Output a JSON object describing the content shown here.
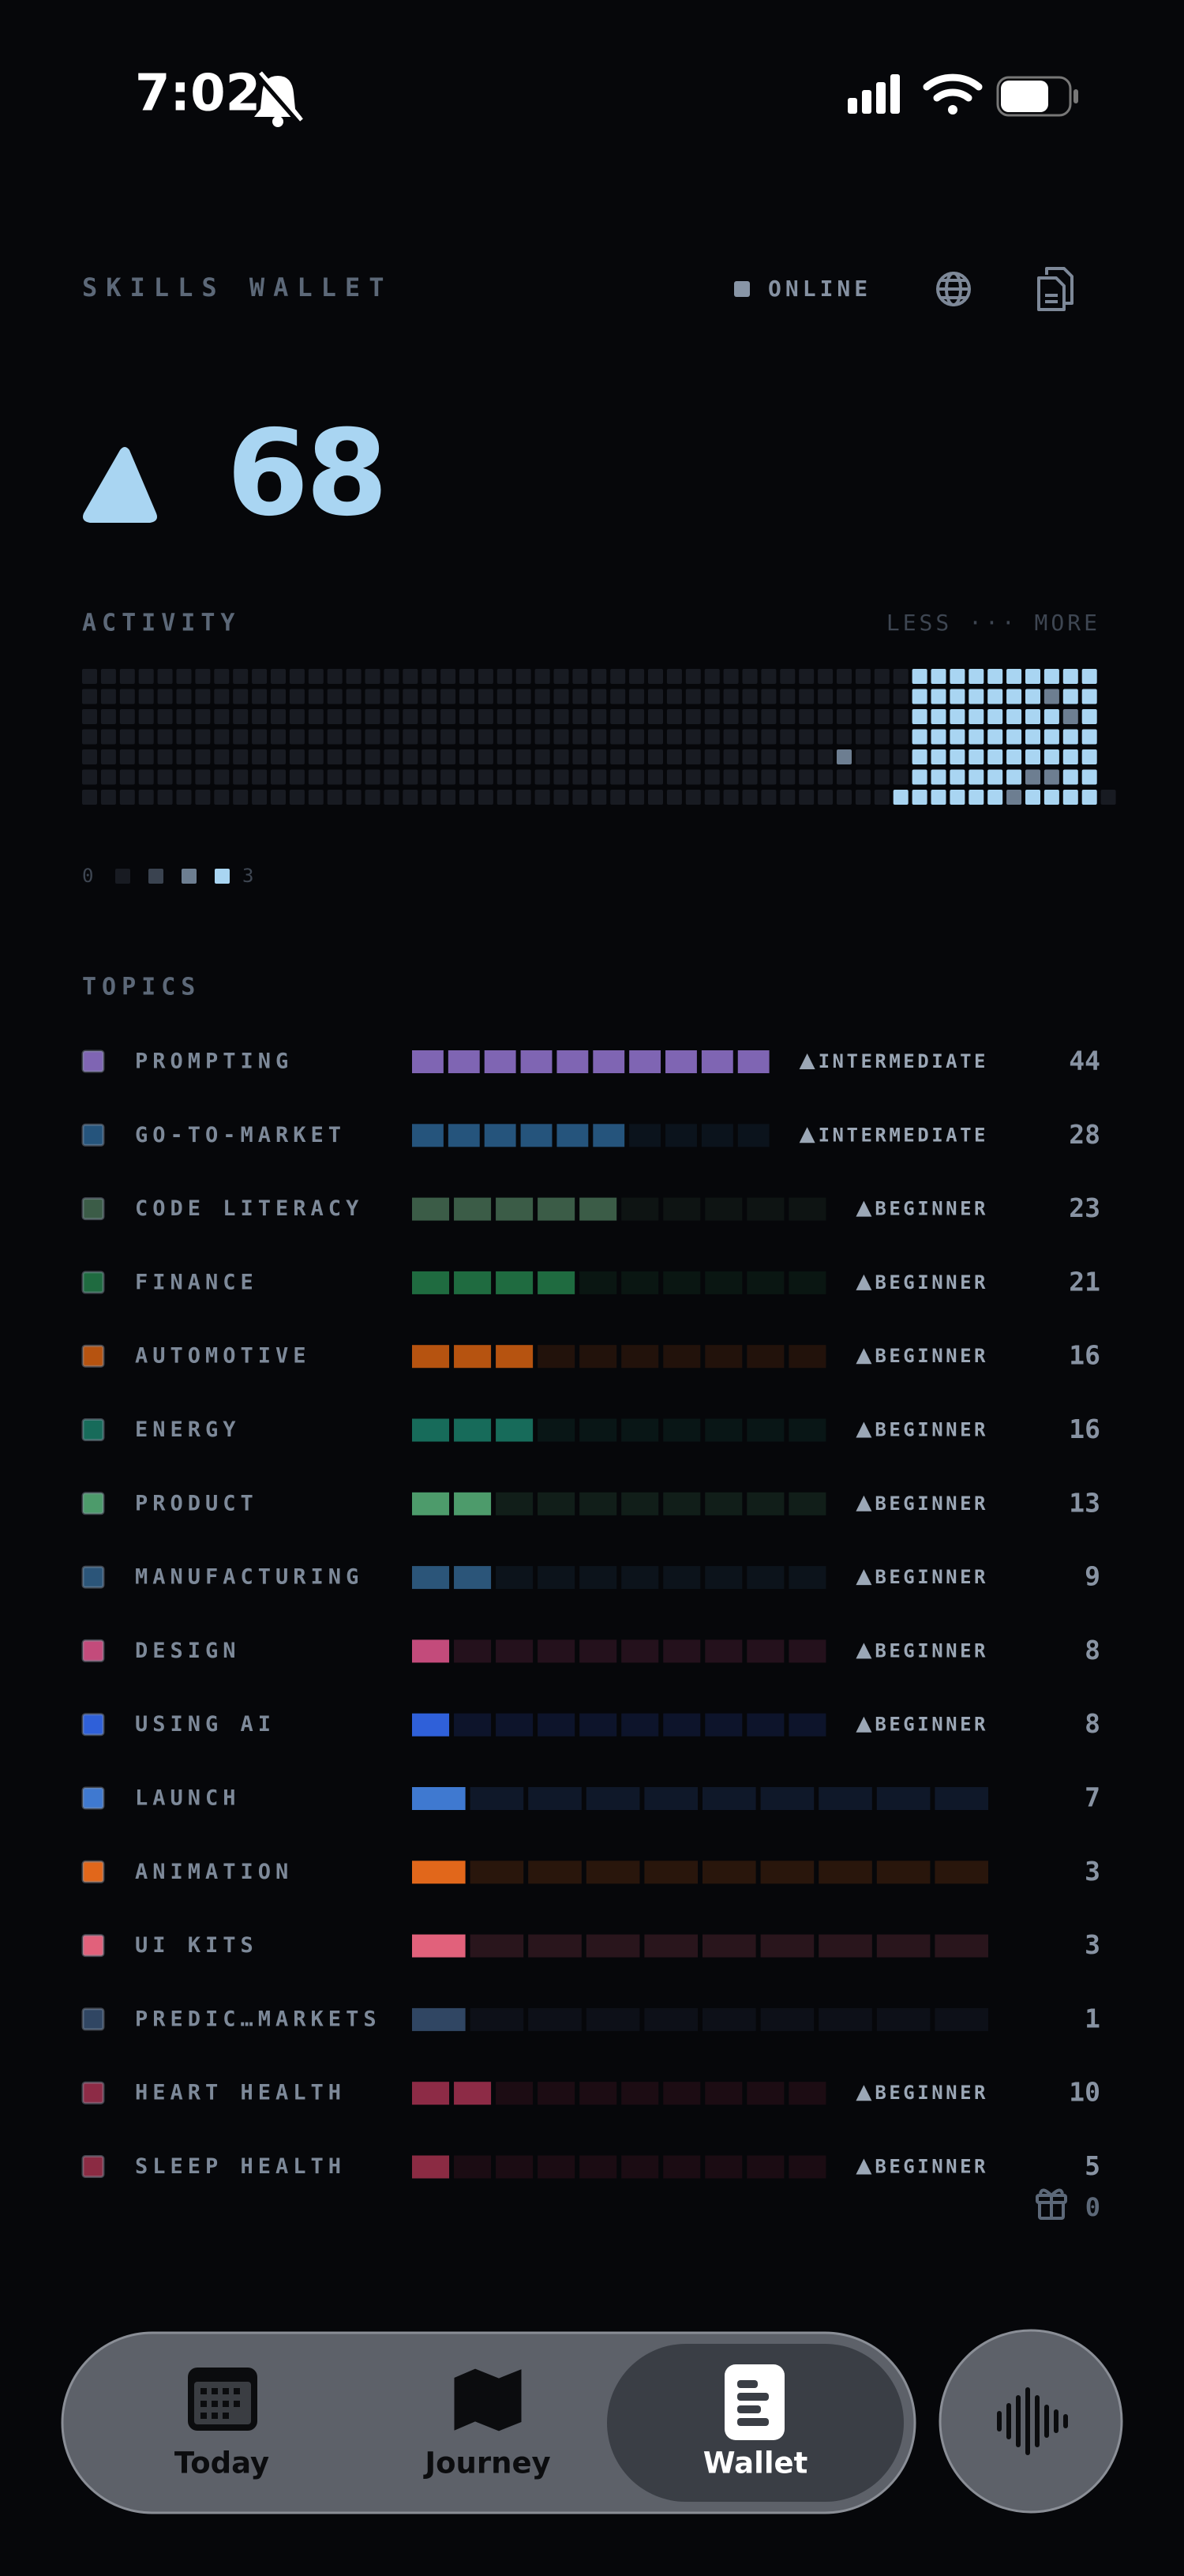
{
  "status_bar": {
    "time": "7:02"
  },
  "header": {
    "title": "SKILLS WALLET",
    "status": "ONLINE"
  },
  "score": {
    "value": 68
  },
  "activity": {
    "title": "ACTIVITY",
    "scale_hint": "LESS ··· MORE",
    "colors": [
      "#181b22",
      "#3a4350",
      "#6d7e91",
      "#a9d5f2"
    ],
    "legend": {
      "min": 0,
      "max": 3
    },
    "levels": [
      [
        0,
        0,
        0,
        0,
        0,
        0,
        0,
        0,
        0,
        0,
        0,
        0,
        0,
        0,
        0,
        0,
        0,
        0,
        0,
        0,
        0,
        0,
        0,
        0,
        0,
        0,
        0,
        0,
        0,
        0,
        0,
        0,
        0,
        0,
        0,
        0,
        0,
        0,
        0,
        0,
        0,
        0,
        0,
        0,
        3,
        3,
        3,
        3,
        3,
        3,
        3,
        3,
        3,
        3
      ],
      [
        0,
        0,
        0,
        0,
        0,
        0,
        0,
        0,
        0,
        0,
        0,
        0,
        0,
        0,
        0,
        0,
        0,
        0,
        0,
        0,
        0,
        0,
        0,
        0,
        0,
        0,
        0,
        0,
        0,
        0,
        0,
        0,
        0,
        0,
        0,
        0,
        0,
        0,
        0,
        0,
        0,
        0,
        0,
        0,
        3,
        3,
        3,
        3,
        3,
        3,
        3,
        2,
        3,
        3
      ],
      [
        0,
        0,
        0,
        0,
        0,
        0,
        0,
        0,
        0,
        0,
        0,
        0,
        0,
        0,
        0,
        0,
        0,
        0,
        0,
        0,
        0,
        0,
        0,
        0,
        0,
        0,
        0,
        0,
        0,
        0,
        0,
        0,
        0,
        0,
        0,
        0,
        0,
        0,
        0,
        0,
        0,
        0,
        0,
        0,
        3,
        3,
        3,
        3,
        3,
        3,
        3,
        3,
        2,
        3
      ],
      [
        0,
        0,
        0,
        0,
        0,
        0,
        0,
        0,
        0,
        0,
        0,
        0,
        0,
        0,
        0,
        0,
        0,
        0,
        0,
        0,
        0,
        0,
        0,
        0,
        0,
        0,
        0,
        0,
        0,
        0,
        0,
        0,
        0,
        0,
        0,
        0,
        0,
        0,
        0,
        0,
        0,
        0,
        0,
        0,
        3,
        3,
        3,
        3,
        3,
        3,
        3,
        3,
        3,
        3
      ],
      [
        0,
        0,
        0,
        0,
        0,
        0,
        0,
        0,
        0,
        0,
        0,
        0,
        0,
        0,
        0,
        0,
        0,
        0,
        0,
        0,
        0,
        0,
        0,
        0,
        0,
        0,
        0,
        0,
        0,
        0,
        0,
        0,
        0,
        0,
        0,
        0,
        0,
        0,
        0,
        0,
        2,
        0,
        0,
        0,
        3,
        3,
        3,
        3,
        3,
        3,
        3,
        3,
        3,
        3
      ],
      [
        0,
        0,
        0,
        0,
        0,
        0,
        0,
        0,
        0,
        0,
        0,
        0,
        0,
        0,
        0,
        0,
        0,
        0,
        0,
        0,
        0,
        0,
        0,
        0,
        0,
        0,
        0,
        0,
        0,
        0,
        0,
        0,
        0,
        0,
        0,
        0,
        0,
        0,
        0,
        0,
        0,
        0,
        0,
        0,
        3,
        3,
        3,
        3,
        3,
        3,
        2,
        2,
        3,
        3
      ],
      [
        0,
        0,
        0,
        0,
        0,
        0,
        0,
        0,
        0,
        0,
        0,
        0,
        0,
        0,
        0,
        0,
        0,
        0,
        0,
        0,
        0,
        0,
        0,
        0,
        0,
        0,
        0,
        0,
        0,
        0,
        0,
        0,
        0,
        0,
        0,
        0,
        0,
        0,
        0,
        0,
        0,
        0,
        0,
        3,
        3,
        3,
        3,
        3,
        3,
        2,
        3,
        3,
        3,
        3,
        0
      ]
    ]
  },
  "topics": {
    "title": "TOPICS",
    "items": [
      {
        "name": "PROMPTING",
        "color": "#7f65b3",
        "level": "INTERMEDIATE",
        "filled": 10,
        "segments": 10,
        "score": 44
      },
      {
        "name": "GO-TO-MARKET",
        "color": "#25547c",
        "level": "INTERMEDIATE",
        "filled": 6,
        "segments": 10,
        "score": 28
      },
      {
        "name": "CODE LITERACY",
        "color": "#3b5c47",
        "level": "BEGINNER",
        "filled": 5,
        "segments": 10,
        "score": 23
      },
      {
        "name": "FINANCE",
        "color": "#1f6b40",
        "level": "BEGINNER",
        "filled": 4,
        "segments": 10,
        "score": 21
      },
      {
        "name": "AUTOMOTIVE",
        "color": "#b65310",
        "level": "BEGINNER",
        "filled": 3,
        "segments": 10,
        "score": 16
      },
      {
        "name": "ENERGY",
        "color": "#176b5a",
        "level": "BEGINNER",
        "filled": 3,
        "segments": 10,
        "score": 16
      },
      {
        "name": "PRODUCT",
        "color": "#4d9b6b",
        "level": "BEGINNER",
        "filled": 2,
        "segments": 10,
        "score": 13
      },
      {
        "name": "MANUFACTURING",
        "color": "#2b5579",
        "level": "BEGINNER",
        "filled": 2,
        "segments": 10,
        "score": 9
      },
      {
        "name": "DESIGN",
        "color": "#c34b7b",
        "level": "BEGINNER",
        "filled": 1,
        "segments": 10,
        "score": 8
      },
      {
        "name": "USING AI",
        "color": "#2f60d9",
        "level": "BEGINNER",
        "filled": 1,
        "segments": 10,
        "score": 8
      },
      {
        "name": "LAUNCH",
        "color": "#3f79d0",
        "filled": 1,
        "segments": 10,
        "score": 7
      },
      {
        "name": "ANIMATION",
        "color": "#e1671b",
        "filled": 1,
        "segments": 10,
        "score": 3
      },
      {
        "name": "UI KITS",
        "color": "#e1617b",
        "filled": 1,
        "segments": 10,
        "score": 3
      },
      {
        "name": "PREDIC…MARKETS",
        "color": "#304663",
        "filled": 1,
        "segments": 10,
        "score": 1
      },
      {
        "name": "HEART HEALTH",
        "color": "#8d2b46",
        "level": "BEGINNER",
        "filled": 2,
        "segments": 10,
        "score": 10
      },
      {
        "name": "SLEEP HEALTH",
        "color": "#8b2b43",
        "level": "BEGINNER",
        "filled": 1,
        "segments": 10,
        "score": 5
      }
    ]
  },
  "rewards": {
    "count": 0
  },
  "tab_bar": {
    "tabs": [
      "Today",
      "Journey",
      "Wallet"
    ],
    "selected": 2
  }
}
